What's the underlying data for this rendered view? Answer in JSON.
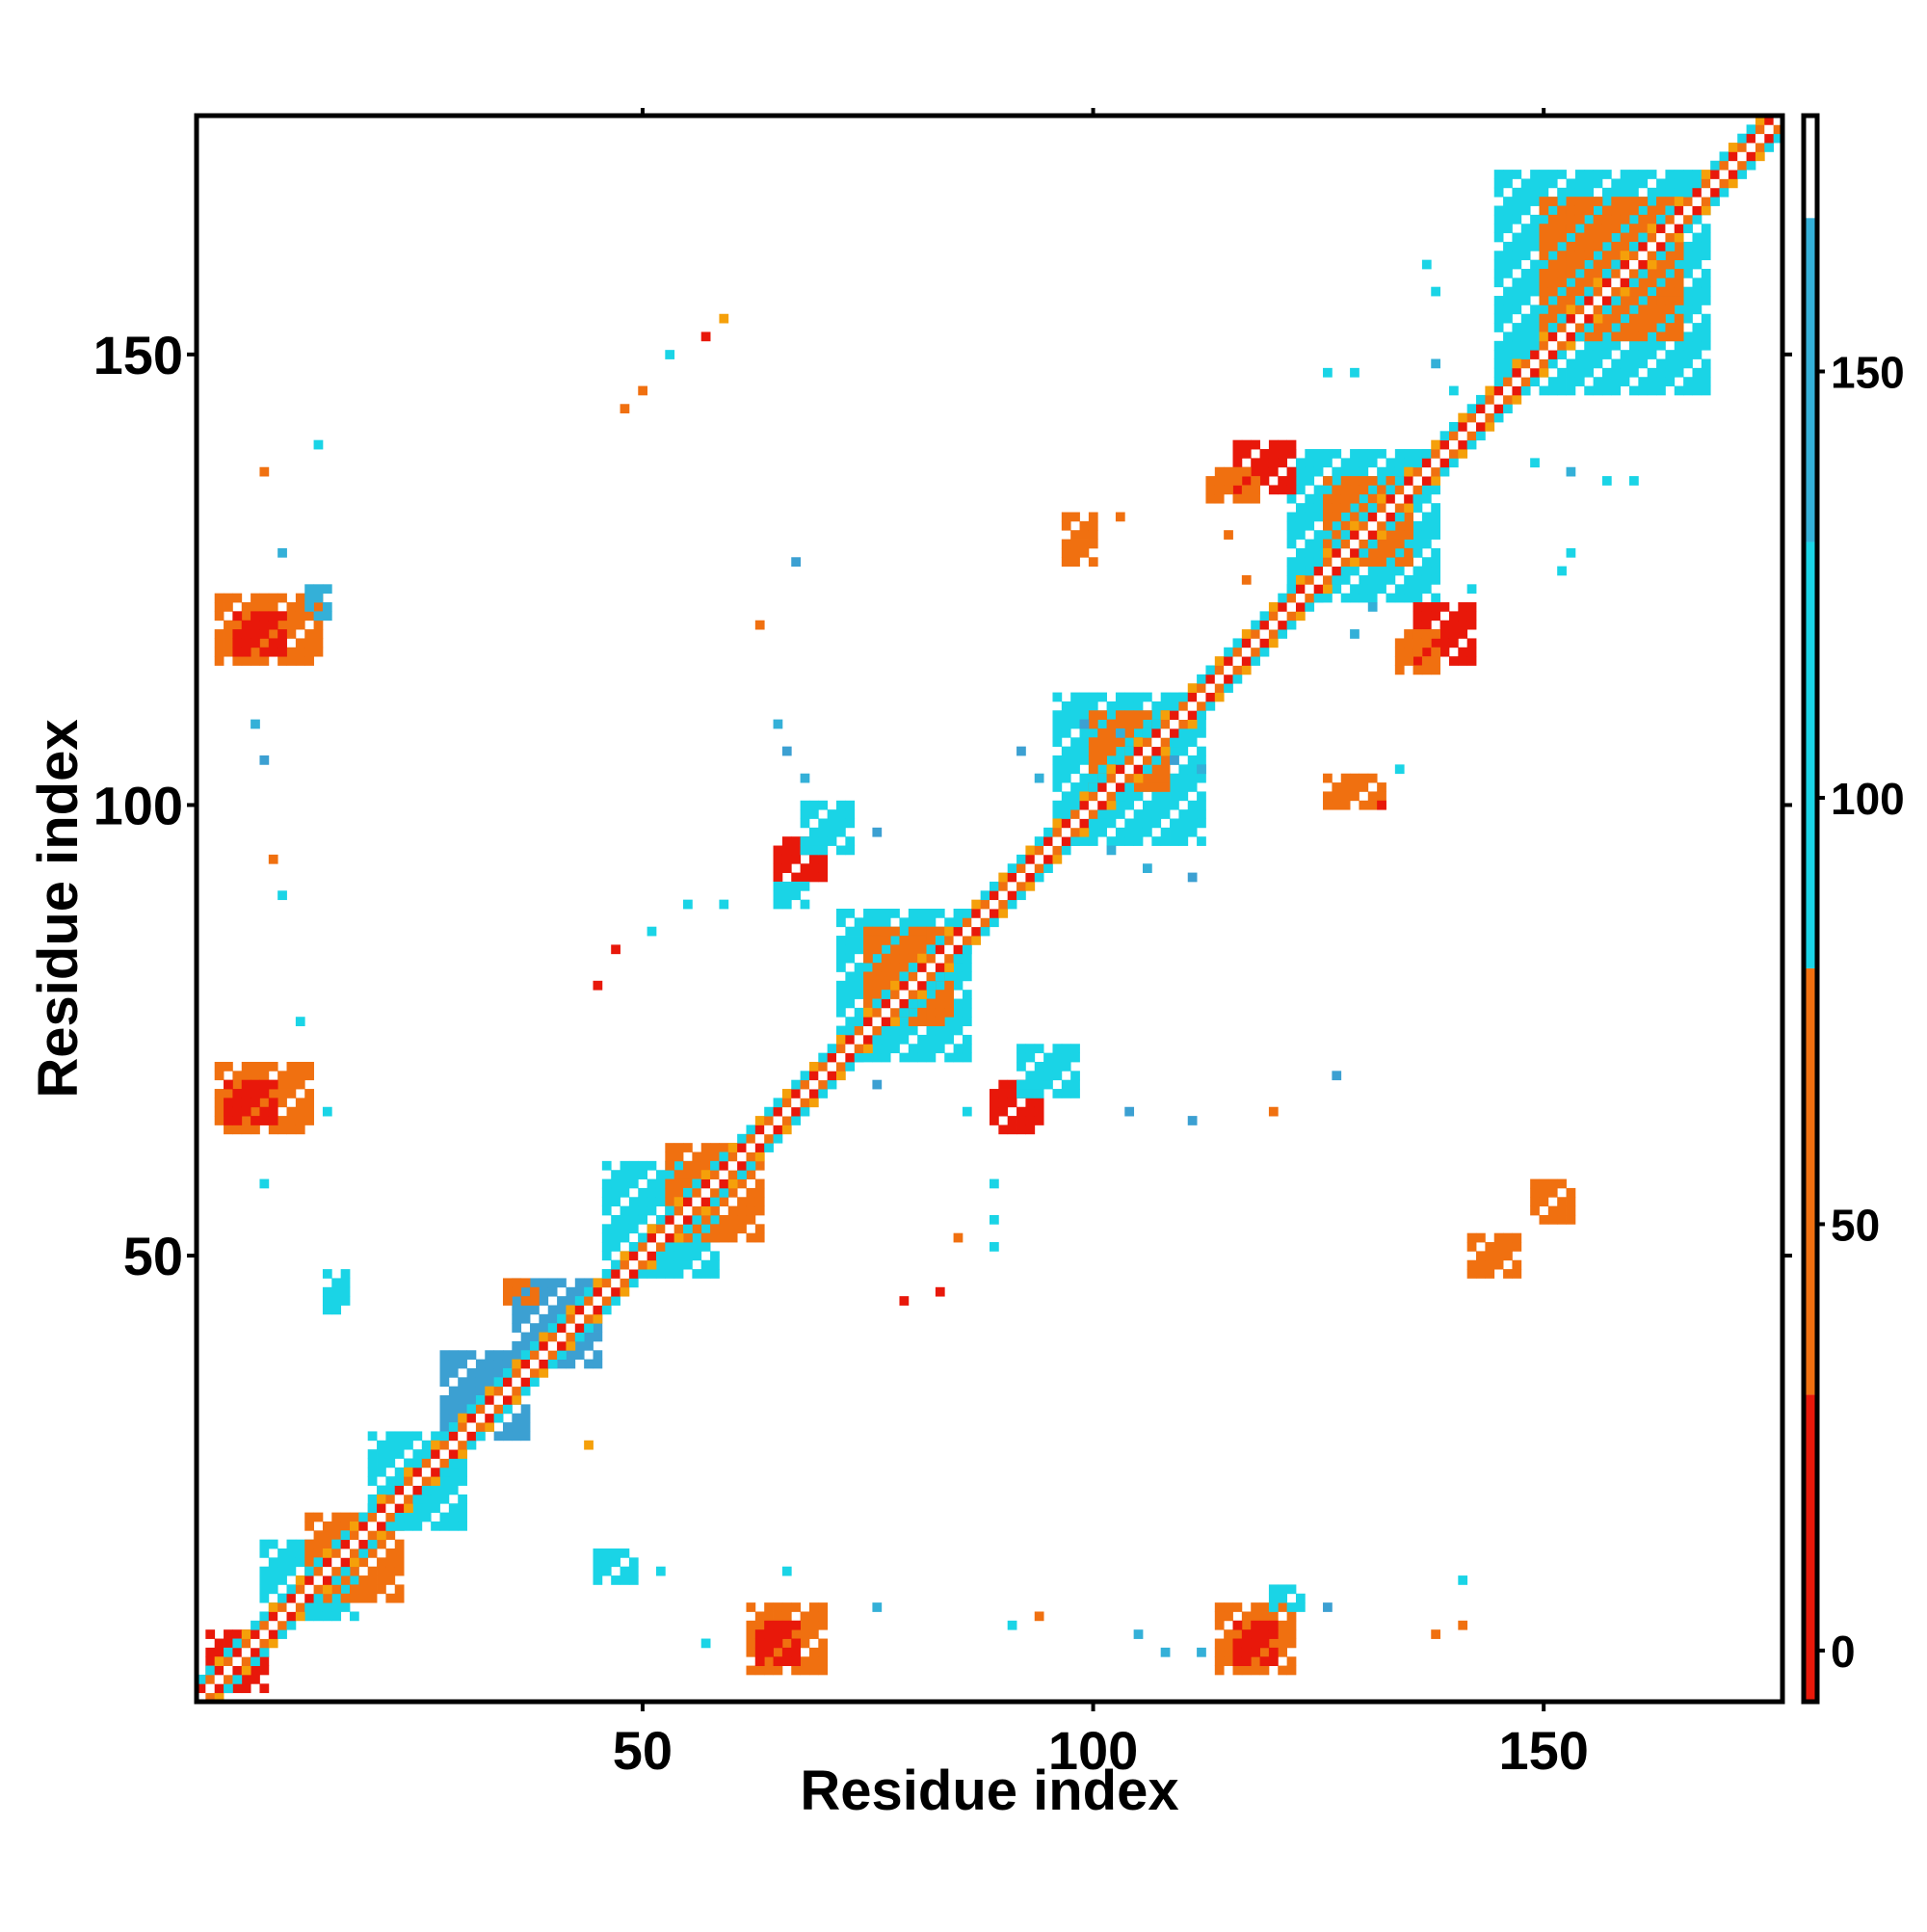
{
  "chart_data": {
    "type": "heatmap",
    "title": "",
    "xlabel": "Residue index",
    "ylabel": "Residue index",
    "xlim": [
      1,
      176
    ],
    "ylim": [
      1,
      176
    ],
    "x_ticks": [
      50,
      100,
      150
    ],
    "y_ticks": [
      50,
      100,
      150
    ],
    "colorbar": {
      "range": [
        -6,
        180
      ],
      "ticks": [
        0,
        50,
        100,
        150
      ],
      "bands": [
        {
          "from": -6,
          "to": 30,
          "color": "#e8180a"
        },
        {
          "from": 30,
          "to": 80,
          "color": "#f07010"
        },
        {
          "from": 80,
          "to": 130,
          "color": "#1ad4e6"
        },
        {
          "from": 130,
          "to": 168,
          "color": "#34b0d8"
        },
        {
          "from": 168,
          "to": 180,
          "color": "#ffffff"
        }
      ]
    },
    "grid": false,
    "diagonal": {
      "from": 1,
      "to": 176,
      "pattern": [
        "#ffffff",
        "#e8180a",
        "#f07010",
        "#f5a00a",
        "#1ad4e6"
      ]
    },
    "regions": [
      {
        "x": [
          2,
          8
        ],
        "y": [
          2,
          8
        ],
        "color": "#e8180a"
      },
      {
        "x": [
          8,
          18
        ],
        "y": [
          10,
          18
        ],
        "color": "#1ad4e6"
      },
      {
        "x": [
          13,
          23
        ],
        "y": [
          12,
          21
        ],
        "color": "#f07010"
      },
      {
        "x": [
          20,
          30
        ],
        "y": [
          20,
          30
        ],
        "color": "#1ad4e6"
      },
      {
        "x": [
          28,
          37
        ],
        "y": [
          30,
          39
        ],
        "color": "#3ca0d2"
      },
      {
        "x": [
          36,
          45
        ],
        "y": [
          38,
          47
        ],
        "color": "#3ca0d2"
      },
      {
        "x": [
          46,
          58
        ],
        "y": [
          48,
          60
        ],
        "color": "#1ad4e6"
      },
      {
        "x": [
          53,
          63
        ],
        "y": [
          52,
          62
        ],
        "color": "#f07010"
      },
      {
        "x": [
          72,
          86
        ],
        "y": [
          72,
          88
        ],
        "color": "#1ad4e6"
      },
      {
        "x": [
          75,
          84
        ],
        "y": [
          76,
          86
        ],
        "color": "#f07010"
      },
      {
        "x": [
          96,
          112
        ],
        "y": [
          96,
          112
        ],
        "color": "#1ad4e6"
      },
      {
        "x": [
          100,
          108
        ],
        "y": [
          102,
          110
        ],
        "color": "#f07010"
      },
      {
        "x": [
          122,
          138
        ],
        "y": [
          123,
          139
        ],
        "color": "#1ad4e6"
      },
      {
        "x": [
          126,
          135
        ],
        "y": [
          127,
          136
        ],
        "color": "#f07010"
      },
      {
        "x": [
          145,
          168
        ],
        "y": [
          146,
          170
        ],
        "color": "#1ad4e6"
      },
      {
        "x": [
          150,
          165
        ],
        "y": [
          152,
          167
        ],
        "color": "#f07010"
      },
      {
        "x": [
          62,
          70
        ],
        "y": [
          4,
          11
        ],
        "color": "#f07010"
      },
      {
        "x": [
          63,
          67
        ],
        "y": [
          5,
          9
        ],
        "color": "#e8180a"
      },
      {
        "x": [
          114,
          122
        ],
        "y": [
          4,
          11
        ],
        "color": "#f07010"
      },
      {
        "x": [
          116,
          120
        ],
        "y": [
          5,
          9
        ],
        "color": "#e8180a"
      },
      {
        "x": [
          120,
          123
        ],
        "y": [
          11,
          13
        ],
        "color": "#1ad4e6"
      },
      {
        "x": [
          45,
          49
        ],
        "y": [
          14,
          17
        ],
        "color": "#1ad4e6"
      },
      {
        "x": [
          3,
          13
        ],
        "y": [
          64,
          71
        ],
        "color": "#f07010"
      },
      {
        "x": [
          4,
          9
        ],
        "y": [
          65,
          69
        ],
        "color": "#e8180a"
      },
      {
        "x": [
          3,
          14
        ],
        "y": [
          116,
          123
        ],
        "color": "#f07010"
      },
      {
        "x": [
          5,
          10
        ],
        "y": [
          117,
          121
        ],
        "color": "#e8180a"
      },
      {
        "x": [
          13,
          15
        ],
        "y": [
          121,
          124
        ],
        "color": "#34b0d8"
      },
      {
        "x": [
          65,
          70
        ],
        "y": [
          92,
          96
        ],
        "color": "#e8180a"
      },
      {
        "x": [
          68,
          73
        ],
        "y": [
          95,
          100
        ],
        "color": "#1ad4e6"
      },
      {
        "x": [
          65,
          68
        ],
        "y": [
          89,
          91
        ],
        "color": "#1ad4e6"
      },
      {
        "x": [
          89,
          94
        ],
        "y": [
          64,
          69
        ],
        "color": "#e8180a"
      },
      {
        "x": [
          92,
          98
        ],
        "y": [
          68,
          73
        ],
        "color": "#1ad4e6"
      },
      {
        "x": [
          116,
          122
        ],
        "y": [
          135,
          140
        ],
        "color": "#e8180a"
      },
      {
        "x": [
          113,
          118
        ],
        "y": [
          134,
          137
        ],
        "color": "#f07010"
      },
      {
        "x": [
          136,
          142
        ],
        "y": [
          116,
          122
        ],
        "color": "#e8180a"
      },
      {
        "x": [
          134,
          138
        ],
        "y": [
          115,
          119
        ],
        "color": "#f07010"
      },
      {
        "x": [
          97,
          100
        ],
        "y": [
          127,
          132
        ],
        "color": "#f07010"
      },
      {
        "x": [
          126,
          132
        ],
        "y": [
          100,
          103
        ],
        "color": "#f07010"
      },
      {
        "x": [
          35,
          38
        ],
        "y": [
          45,
          47
        ],
        "color": "#f07010"
      },
      {
        "x": [
          15,
          17
        ],
        "y": [
          44,
          48
        ],
        "color": "#1ad4e6"
      },
      {
        "x": [
          149,
          153
        ],
        "y": [
          54,
          58
        ],
        "color": "#f07010"
      },
      {
        "x": [
          142,
          147
        ],
        "y": [
          48,
          52
        ],
        "color": "#f07010"
      }
    ],
    "points": [
      {
        "x": 57,
        "y": 152,
        "color": "#e8180a"
      },
      {
        "x": 53,
        "y": 150,
        "color": "#1ad4e6"
      },
      {
        "x": 50,
        "y": 146,
        "color": "#f07010"
      },
      {
        "x": 48,
        "y": 144,
        "color": "#f07010"
      },
      {
        "x": 59,
        "y": 154,
        "color": "#f5a00a"
      },
      {
        "x": 14,
        "y": 140,
        "color": "#1ad4e6"
      },
      {
        "x": 8,
        "y": 137,
        "color": "#f07010"
      },
      {
        "x": 10,
        "y": 128,
        "color": "#34b0d8"
      },
      {
        "x": 7,
        "y": 109,
        "color": "#34b0d8"
      },
      {
        "x": 8,
        "y": 105,
        "color": "#3ca0d2"
      },
      {
        "x": 9,
        "y": 94,
        "color": "#f07010"
      },
      {
        "x": 10,
        "y": 90,
        "color": "#1ad4e6"
      },
      {
        "x": 12,
        "y": 76,
        "color": "#1ad4e6"
      },
      {
        "x": 8,
        "y": 58,
        "color": "#1ad4e6"
      },
      {
        "x": 15,
        "y": 66,
        "color": "#1ad4e6"
      },
      {
        "x": 67,
        "y": 127,
        "color": "#3ca0d2"
      },
      {
        "x": 63,
        "y": 120,
        "color": "#f07010"
      },
      {
        "x": 65,
        "y": 109,
        "color": "#34b0d8"
      },
      {
        "x": 66,
        "y": 106,
        "color": "#3ca0d2"
      },
      {
        "x": 68,
        "y": 103,
        "color": "#34b0d8"
      },
      {
        "x": 76,
        "y": 97,
        "color": "#3ca0d2"
      },
      {
        "x": 55,
        "y": 89,
        "color": "#1ad4e6"
      },
      {
        "x": 59,
        "y": 89,
        "color": "#1ad4e6"
      },
      {
        "x": 51,
        "y": 86,
        "color": "#1ad4e6"
      },
      {
        "x": 47,
        "y": 84,
        "color": "#e8180a"
      },
      {
        "x": 45,
        "y": 80,
        "color": "#e8180a"
      },
      {
        "x": 76,
        "y": 69,
        "color": "#3ca0d2"
      },
      {
        "x": 86,
        "y": 66,
        "color": "#1ad4e6"
      },
      {
        "x": 104,
        "y": 66,
        "color": "#3ca0d2"
      },
      {
        "x": 111,
        "y": 65,
        "color": "#3ca0d2"
      },
      {
        "x": 120,
        "y": 66,
        "color": "#f07010"
      },
      {
        "x": 127,
        "y": 70,
        "color": "#3ca0d2"
      },
      {
        "x": 89,
        "y": 58,
        "color": "#1ad4e6"
      },
      {
        "x": 89,
        "y": 54,
        "color": "#1ad4e6"
      },
      {
        "x": 85,
        "y": 52,
        "color": "#f07010"
      },
      {
        "x": 83,
        "y": 46,
        "color": "#e8180a"
      },
      {
        "x": 79,
        "y": 45,
        "color": "#e8180a"
      },
      {
        "x": 89,
        "y": 51,
        "color": "#1ad4e6"
      },
      {
        "x": 44,
        "y": 29,
        "color": "#f5a00a"
      },
      {
        "x": 52,
        "y": 15,
        "color": "#1ad4e6"
      },
      {
        "x": 66,
        "y": 15,
        "color": "#1ad4e6"
      },
      {
        "x": 76,
        "y": 11,
        "color": "#34b0d8"
      },
      {
        "x": 57,
        "y": 7,
        "color": "#1ad4e6"
      },
      {
        "x": 91,
        "y": 9,
        "color": "#1ad4e6"
      },
      {
        "x": 94,
        "y": 10,
        "color": "#f07010"
      },
      {
        "x": 105,
        "y": 8,
        "color": "#34b0d8"
      },
      {
        "x": 108,
        "y": 6,
        "color": "#34b0d8"
      },
      {
        "x": 112,
        "y": 6,
        "color": "#34b0d8"
      },
      {
        "x": 126,
        "y": 11,
        "color": "#3ca0d2"
      },
      {
        "x": 141,
        "y": 14,
        "color": "#1ad4e6"
      },
      {
        "x": 138,
        "y": 8,
        "color": "#f07010"
      },
      {
        "x": 141,
        "y": 9,
        "color": "#f07010"
      },
      {
        "x": 103,
        "y": 108,
        "color": "#34b0d8"
      },
      {
        "x": 99,
        "y": 109,
        "color": "#3ca0d2"
      },
      {
        "x": 92,
        "y": 106,
        "color": "#3ca0d2"
      },
      {
        "x": 94,
        "y": 103,
        "color": "#34b0d8"
      },
      {
        "x": 109,
        "y": 105,
        "color": "#3ca0d2"
      },
      {
        "x": 112,
        "y": 104,
        "color": "#34b0d8"
      },
      {
        "x": 102,
        "y": 95,
        "color": "#34b0d8"
      },
      {
        "x": 106,
        "y": 93,
        "color": "#34b0d8"
      },
      {
        "x": 111,
        "y": 92,
        "color": "#3ca0d2"
      },
      {
        "x": 134,
        "y": 104,
        "color": "#1ad4e6"
      },
      {
        "x": 132,
        "y": 100,
        "color": "#e8180a"
      },
      {
        "x": 126,
        "y": 148,
        "color": "#1ad4e6"
      },
      {
        "x": 129,
        "y": 148,
        "color": "#1ad4e6"
      },
      {
        "x": 138,
        "y": 149,
        "color": "#34b0d8"
      },
      {
        "x": 138,
        "y": 157,
        "color": "#1ad4e6"
      },
      {
        "x": 137,
        "y": 160,
        "color": "#1ad4e6"
      },
      {
        "x": 140,
        "y": 146,
        "color": "#1ad4e6"
      },
      {
        "x": 149,
        "y": 138,
        "color": "#1ad4e6"
      },
      {
        "x": 153,
        "y": 137,
        "color": "#34b0d8"
      },
      {
        "x": 160,
        "y": 136,
        "color": "#1ad4e6"
      },
      {
        "x": 157,
        "y": 136,
        "color": "#1ad4e6"
      },
      {
        "x": 153,
        "y": 128,
        "color": "#1ad4e6"
      },
      {
        "x": 152,
        "y": 126,
        "color": "#1ad4e6"
      },
      {
        "x": 131,
        "y": 122,
        "color": "#34b0d8"
      },
      {
        "x": 136,
        "y": 128,
        "color": "#1ad4e6"
      },
      {
        "x": 142,
        "y": 124,
        "color": "#1ad4e6"
      },
      {
        "x": 129,
        "y": 119,
        "color": "#34b0d8"
      },
      {
        "x": 117,
        "y": 125,
        "color": "#f07010"
      },
      {
        "x": 115,
        "y": 130,
        "color": "#f07010"
      },
      {
        "x": 103,
        "y": 132,
        "color": "#f07010"
      }
    ]
  }
}
